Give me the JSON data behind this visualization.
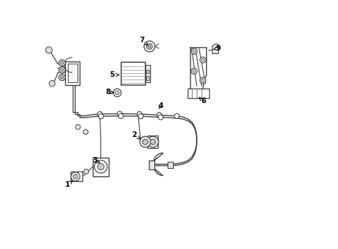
{
  "background_color": "#ffffff",
  "line_color": "#3a3a3a",
  "text_color": "#000000",
  "figsize": [
    4.89,
    3.6
  ],
  "dpi": 100,
  "label_positions": {
    "1": {
      "text": [
        0.098,
        0.115
      ],
      "arrow": [
        0.115,
        0.138
      ]
    },
    "2": {
      "text": [
        0.345,
        0.415
      ],
      "arrow": [
        0.365,
        0.385
      ]
    },
    "3": {
      "text": [
        0.235,
        0.325
      ],
      "arrow": [
        0.255,
        0.325
      ]
    },
    "4": {
      "text": [
        0.465,
        0.575
      ],
      "arrow": [
        0.455,
        0.555
      ]
    },
    "5": {
      "text": [
        0.275,
        0.695
      ],
      "arrow": [
        0.305,
        0.695
      ]
    },
    "6": {
      "text": [
        0.635,
        0.595
      ],
      "arrow": [
        0.615,
        0.608
      ]
    },
    "7": {
      "text": [
        0.39,
        0.84
      ],
      "arrow": [
        0.408,
        0.818
      ]
    },
    "8": {
      "text": [
        0.265,
        0.625
      ],
      "arrow": [
        0.29,
        0.625
      ]
    },
    "9": {
      "text": [
        0.695,
        0.808
      ],
      "arrow": [
        0.675,
        0.8
      ]
    },
    "4b": {
      "text": [
        0.465,
        0.575
      ],
      "arrow": [
        0.455,
        0.555
      ]
    }
  }
}
